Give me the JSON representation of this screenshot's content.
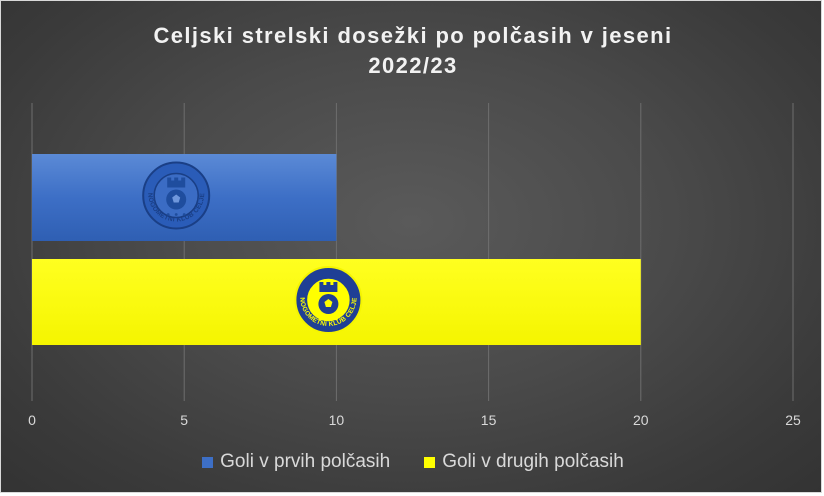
{
  "chart_data": {
    "type": "bar",
    "orientation": "horizontal",
    "title": "Celjski strelski dosežki po polčasih v jeseni 2022/23",
    "title_lines": [
      "Celjski strelski dosežki po polčasih v jeseni",
      "2022/23"
    ],
    "xlim": [
      0,
      25
    ],
    "x_ticks": [
      "0",
      "5",
      "10",
      "15",
      "20",
      "25"
    ],
    "grid": "vertical",
    "legend_position": "bottom",
    "series": [
      {
        "name": "Goli v prvih polčasih",
        "value": 10,
        "color": "#3d6fc6",
        "logo_icon": "nk-celje-crest-blue"
      },
      {
        "name": "Goli v drugih polčasih",
        "value": 20,
        "color": "#ffff00",
        "logo_icon": "nk-celje-crest-yellow"
      }
    ],
    "logo_text": "NOGOMETNI KLUB CELJE"
  }
}
